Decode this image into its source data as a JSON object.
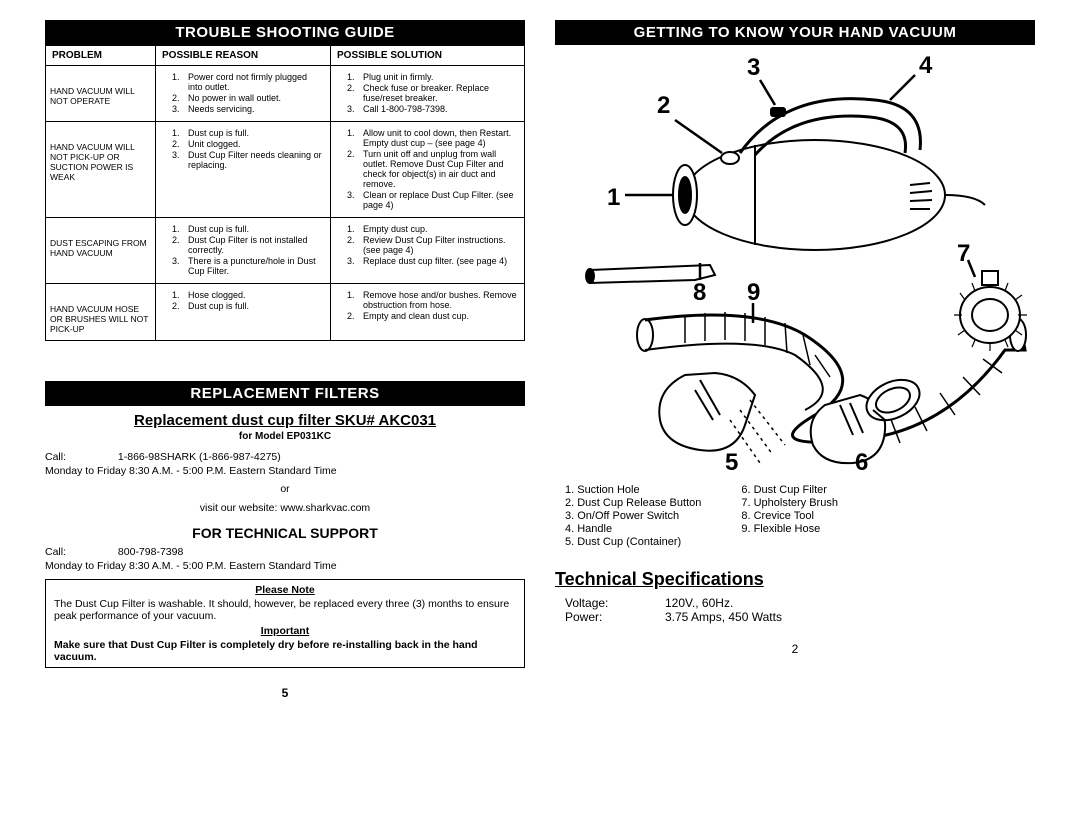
{
  "left": {
    "trouble_header": "TROUBLE SHOOTING GUIDE",
    "table": {
      "headers": {
        "c1": "PROBLEM",
        "c2": "POSSIBLE REASON",
        "c3": "POSSIBLE SOLUTION"
      },
      "rows": [
        {
          "problem": "HAND VACUUM WILL NOT OPERATE",
          "reasons": [
            "Power cord not firmly plugged into outlet.",
            "No power in wall outlet.",
            "Needs servicing."
          ],
          "solutions": [
            "Plug unit in firmly.",
            "Check fuse or breaker. Replace fuse/reset breaker.",
            "Call 1-800-798-7398."
          ]
        },
        {
          "problem": "HAND VACUUM WILL NOT PICK-UP OR SUCTION POWER IS WEAK",
          "reasons": [
            "Dust cup is full.",
            "Unit clogged.",
            "Dust Cup Filter needs cleaning or replacing."
          ],
          "solutions": [
            "Allow unit to cool down, then Restart. Empty dust cup – (see page 4)",
            "Turn unit off and unplug from wall outlet. Remove Dust Cup Filter and check for object(s) in air duct and remove.",
            "Clean or replace Dust Cup Filter.  (see page 4)"
          ]
        },
        {
          "problem": "DUST ESCAPING FROM HAND VACUUM",
          "reasons": [
            "Dust cup is full.",
            "Dust Cup Filter is not installed correctly.",
            "There is a puncture/hole in Dust Cup Filter."
          ],
          "solutions": [
            "Empty dust cup.",
            "Review Dust Cup Filter instructions.  (see page 4)",
            "Replace dust cup filter. (see page 4)"
          ]
        },
        {
          "problem": "HAND VACUUM HOSE OR BRUSHES WILL NOT PICK-UP",
          "reasons": [
            "Hose clogged.",
            "Dust cup is full."
          ],
          "solutions": [
            "Remove hose and/or bushes. Remove obstruction from hose.",
            "Empty and clean dust cup."
          ]
        }
      ]
    },
    "replacement_header": "REPLACEMENT FILTERS",
    "replacement_sub": "Replacement dust cup filter SKU# AKC031",
    "replacement_model": "for Model EP031KC",
    "call_lbl": "Call:",
    "call_num": "1-866-98SHARK (1-866-987-4275)",
    "hours": "Monday to Friday 8:30 A.M. - 5:00 P.M. Eastern Standard Time",
    "or": "or",
    "website": "visit our website: www.sharkvac.com",
    "tech_support_header": "FOR TECHNICAL SUPPORT",
    "tech_call_lbl": "Call:",
    "tech_call_num": "800-798-7398",
    "note_title": "Please Note",
    "note_body": "The Dust Cup Filter is washable.  It should, however, be replaced every three (3) months to ensure peak performance of your vacuum.",
    "important_title": "Important",
    "important_body": "Make sure that Dust Cup Filter is completely dry before re-installing back in the hand vacuum.",
    "page_num": "5"
  },
  "right": {
    "header": "GETTING TO KNOW  YOUR HAND VACUUM",
    "parts_left": [
      "1. Suction Hole",
      "2. Dust Cup Release Button",
      "3. On/Off Power Switch",
      "4. Handle",
      "5. Dust Cup (Container)"
    ],
    "parts_right": [
      "6. Dust Cup Filter",
      "7. Upholstery Brush",
      "8. Crevice Tool",
      "9. Flexible Hose"
    ],
    "tech_spec_title": "Technical Specifications",
    "voltage_lbl": "Voltage:",
    "voltage_val": "120V.,  60Hz.",
    "power_lbl": "Power:",
    "power_val": "3.75 Amps, 450 Watts",
    "page_num": "2",
    "callouts": {
      "n1": "1",
      "n2": "2",
      "n3": "3",
      "n4": "4",
      "n5": "5",
      "n6": "6",
      "n7": "7",
      "n8": "8",
      "n9": "9"
    }
  }
}
